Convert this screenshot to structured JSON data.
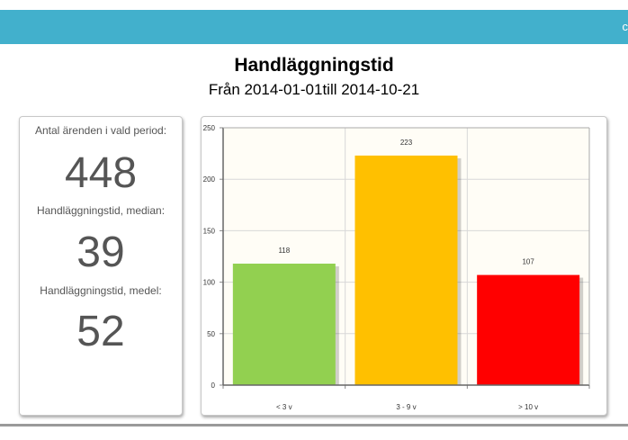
{
  "header": {
    "bar_color": "#42b0cc",
    "corner_glyph": "c"
  },
  "report": {
    "title": "Handläggningstid",
    "subtitle": "Från 2014-01-01till 2014-10-21"
  },
  "stats": {
    "count_label": "Antal ärenden i vald period:",
    "count_value": "448",
    "median_label": "Handläggningstid, median:",
    "median_value": "39",
    "mean_label": "Handläggningstid, medel:",
    "mean_value": "52"
  },
  "chart_data": {
    "type": "bar",
    "categories": [
      "< 3 v",
      "3 - 9 v",
      "> 10 v"
    ],
    "values": [
      118,
      223,
      107
    ],
    "colors": [
      "#92d050",
      "#ffc000",
      "#ff0000"
    ],
    "title": "",
    "xlabel": "",
    "ylabel": "",
    "ylim": [
      0,
      250
    ],
    "yticks": [
      0,
      50,
      100,
      150,
      200,
      250
    ],
    "grid": true,
    "data_labels": true,
    "plot_background": "#fffdf6"
  }
}
